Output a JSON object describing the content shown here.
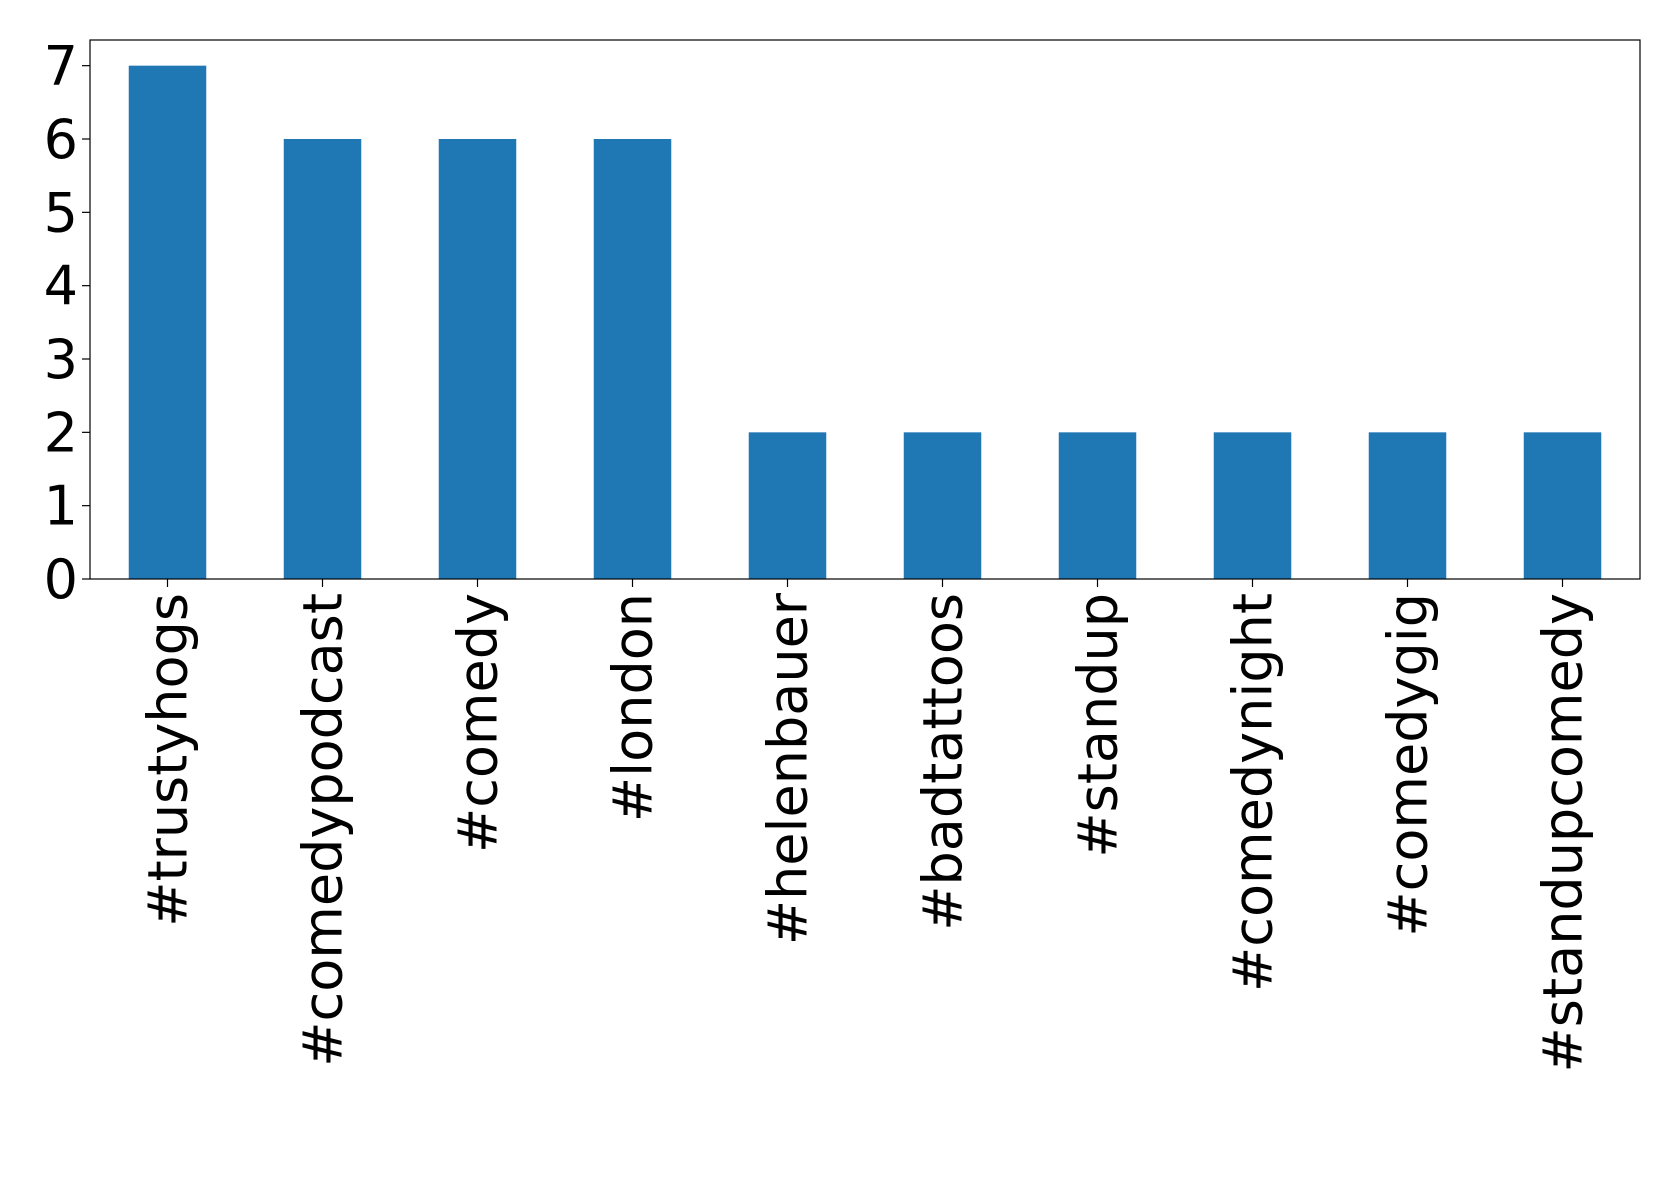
{
  "chart_data": {
    "type": "bar",
    "categories": [
      "#trustyhogs",
      "#comedypodcast",
      "#comedy",
      "#london",
      "#helenbauer",
      "#badtattoos",
      "#standup",
      "#comedynight",
      "#comedygig",
      "#standupcomedy"
    ],
    "values": [
      7,
      6,
      6,
      6,
      2,
      2,
      2,
      2,
      2,
      2
    ],
    "color": "#1f77b4",
    "ylim": [
      0,
      7.35
    ],
    "yticks": [
      0,
      1,
      2,
      3,
      4,
      5,
      6,
      7
    ],
    "grid": false
  }
}
